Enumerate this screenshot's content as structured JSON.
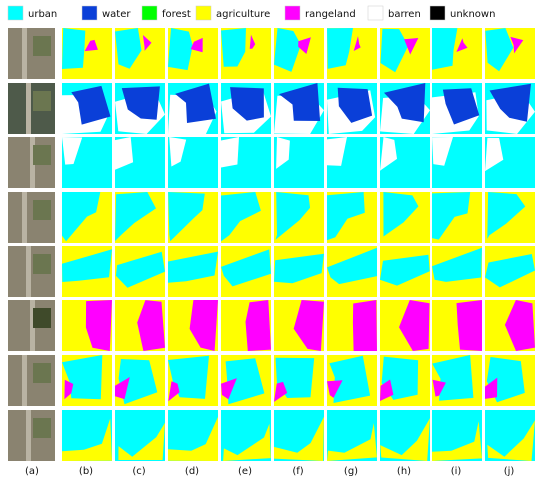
{
  "legend": [
    {
      "label": "urban",
      "color": "#00ffff"
    },
    {
      "label": "water",
      "color": "#0a3fd8"
    },
    {
      "label": "forest",
      "color": "#00ff00"
    },
    {
      "label": "agriculture",
      "color": "#ffff00"
    },
    {
      "label": "rangeland",
      "color": "#ff00ff"
    },
    {
      "label": "barren",
      "color": "#ffffff"
    },
    {
      "label": "unknown",
      "color": "#000000"
    }
  ],
  "column_labels": [
    "(a)",
    "(b)",
    "(c)",
    "(d)",
    "(e)",
    "(f)",
    "(g)",
    "(h)",
    "(i)",
    "(j)"
  ]
}
